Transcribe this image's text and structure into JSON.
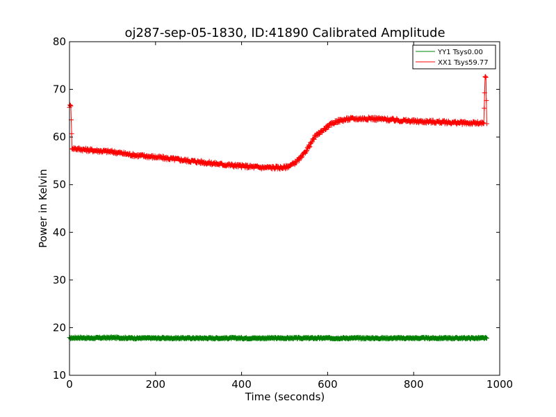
{
  "chart_data": {
    "type": "line",
    "title": "oj287-sep-05-1830, ID:41890 Calibrated Amplitude",
    "xlabel": "Time (seconds)",
    "ylabel": "Power in Kelvin",
    "xlim": [
      0,
      1000
    ],
    "ylim": [
      10,
      80
    ],
    "xticks": [
      0,
      200,
      400,
      600,
      800,
      1000
    ],
    "yticks": [
      10,
      20,
      30,
      40,
      50,
      60,
      70,
      80
    ],
    "grid": false,
    "legend_position": "top-right",
    "series": [
      {
        "name": "YY1 Tsys0.00",
        "color": "#008000",
        "marker": "plus",
        "x": [
          0,
          20,
          50,
          100,
          150,
          200,
          300,
          400,
          500,
          600,
          700,
          800,
          900,
          970
        ],
        "y": [
          17.8,
          17.9,
          17.8,
          17.9,
          17.8,
          17.8,
          17.8,
          17.8,
          17.8,
          17.8,
          17.8,
          17.8,
          17.8,
          17.8
        ]
      },
      {
        "name": "XX1 Tsys59.77",
        "color": "#ff0000",
        "marker": "plus",
        "x": [
          0,
          3,
          6,
          10,
          40,
          100,
          150,
          200,
          250,
          300,
          350,
          400,
          450,
          500,
          520,
          540,
          560,
          570,
          580,
          600,
          620,
          650,
          700,
          750,
          800,
          850,
          900,
          950,
          960,
          963,
          966,
          968,
          970
        ],
        "y": [
          66.5,
          66.5,
          57.8,
          57.6,
          57.3,
          56.9,
          56.2,
          55.8,
          55.3,
          54.8,
          54.3,
          53.9,
          53.6,
          53.6,
          54.3,
          55.8,
          58.5,
          60.0,
          60.8,
          62.2,
          63.3,
          63.8,
          63.9,
          63.6,
          63.3,
          63.2,
          63.0,
          62.9,
          62.8,
          62.8,
          72.5,
          72.5,
          62.8
        ]
      }
    ]
  }
}
